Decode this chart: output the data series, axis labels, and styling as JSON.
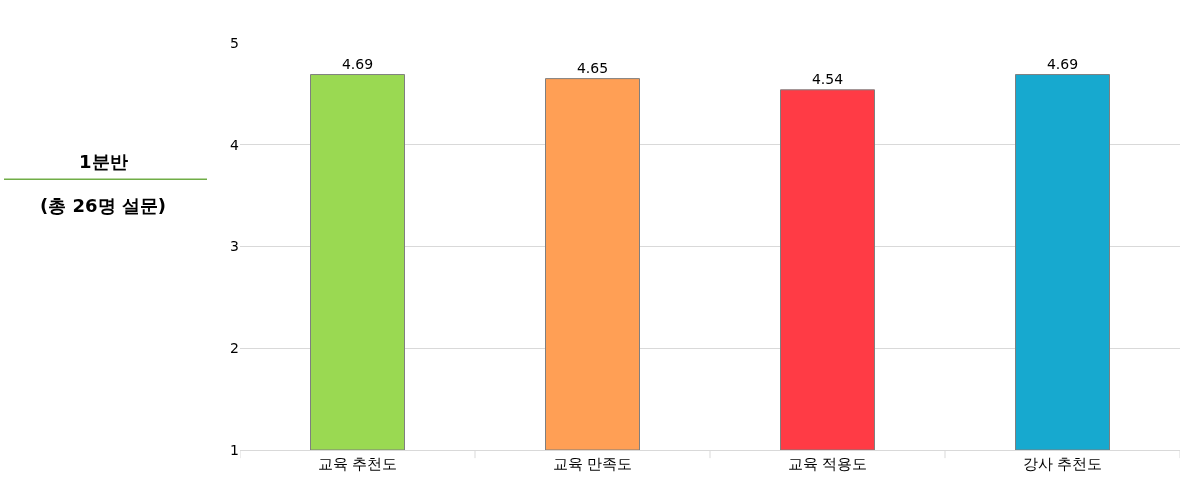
{
  "chart_data": {
    "type": "bar",
    "title": "1분반",
    "subtitle": "(총 26명 설문)",
    "categories": [
      "교육 추천도",
      "교육 만족도",
      "교육 적용도",
      "강사 추천도"
    ],
    "values": [
      4.69,
      4.65,
      4.54,
      4.69
    ],
    "colors": [
      "#9ad952",
      "#ff9f55",
      "#ff3b45",
      "#17a9cf"
    ],
    "ylim": [
      1,
      5
    ],
    "yticks": [
      1,
      2,
      3,
      4,
      5
    ],
    "grid": "y",
    "data_labels": true
  }
}
